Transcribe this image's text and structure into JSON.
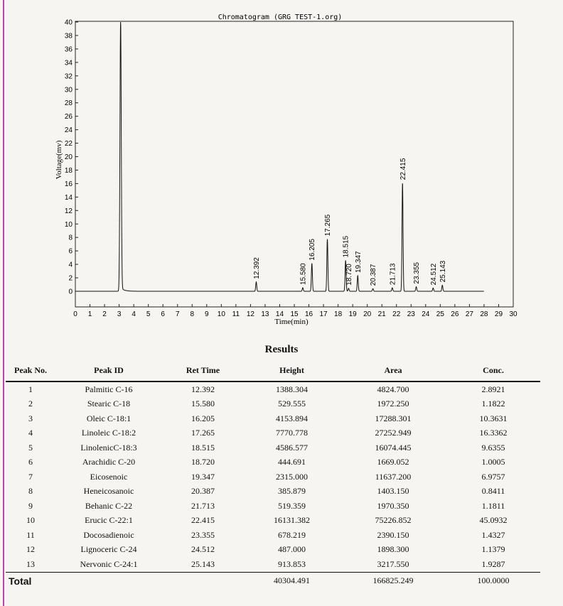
{
  "chart_data": {
    "type": "line",
    "title": "Chromatogram (GRG TEST-1.org)",
    "xlabel": "Time(min)",
    "ylabel": "Voltage(mv)",
    "xlim": [
      0,
      30
    ],
    "ylim": [
      -2,
      40
    ],
    "x_ticks": [
      0,
      1,
      2,
      3,
      4,
      5,
      6,
      7,
      8,
      9,
      10,
      11,
      12,
      13,
      14,
      15,
      16,
      17,
      18,
      19,
      20,
      21,
      22,
      23,
      24,
      25,
      26,
      27,
      28,
      29,
      30
    ],
    "y_ticks": [
      0,
      2,
      4,
      6,
      8,
      10,
      12,
      14,
      16,
      18,
      20,
      22,
      24,
      26,
      28,
      30,
      32,
      34,
      36,
      38,
      40
    ],
    "grid": false,
    "legend": "none",
    "solvent_peak": {
      "time": 3.1,
      "height": 40
    },
    "series": [
      {
        "peaks": [
          {
            "time": 12.392,
            "label": "12.392",
            "height": 1.39
          },
          {
            "time": 15.58,
            "label": "15.580",
            "height": 0.53
          },
          {
            "time": 16.205,
            "label": "16.205",
            "height": 4.15
          },
          {
            "time": 17.265,
            "label": "17.265",
            "height": 7.77
          },
          {
            "time": 18.515,
            "label": "18.515",
            "height": 4.59
          },
          {
            "time": 18.72,
            "label": "18.720",
            "height": 0.44
          },
          {
            "time": 19.347,
            "label": "19.347",
            "height": 2.32
          },
          {
            "time": 20.387,
            "label": "20.387",
            "height": 0.39
          },
          {
            "time": 21.713,
            "label": "21.713",
            "height": 0.52
          },
          {
            "time": 22.415,
            "label": "22.415",
            "height": 16.13
          },
          {
            "time": 23.355,
            "label": "23.355",
            "height": 0.68
          },
          {
            "time": 24.512,
            "label": "24.512",
            "height": 0.49
          },
          {
            "time": 25.143,
            "label": "25.143",
            "height": 0.91
          }
        ]
      }
    ]
  },
  "results": {
    "title": "Results",
    "headers": [
      "Peak No.",
      "Peak ID",
      "Ret Time",
      "Height",
      "Area",
      "Conc."
    ],
    "rows": [
      [
        "1",
        "Palmitic C-16",
        "12.392",
        "1388.304",
        "4824.700",
        "2.8921"
      ],
      [
        "2",
        "Stearic C-18",
        "15.580",
        "529.555",
        "1972.250",
        "1.1822"
      ],
      [
        "3",
        "Oleic C-18:1",
        "16.205",
        "4153.894",
        "17288.301",
        "10.3631"
      ],
      [
        "4",
        "Linoleic C-18:2",
        "17.265",
        "7770.778",
        "27252.949",
        "16.3362"
      ],
      [
        "5",
        "LinolenicC-18:3",
        "18.515",
        "4586.577",
        "16074.445",
        "9.6355"
      ],
      [
        "6",
        "Arachidic C-20",
        "18.720",
        "444.691",
        "1669.052",
        "1.0005"
      ],
      [
        "7",
        "Eicosenoic",
        "19.347",
        "2315.000",
        "11637.200",
        "6.9757"
      ],
      [
        "8",
        "Heneicosanoic",
        "20.387",
        "385.879",
        "1403.150",
        "0.8411"
      ],
      [
        "9",
        "Behanic C-22",
        "21.713",
        "519.359",
        "1970.350",
        "1.1811"
      ],
      [
        "10",
        "Erucic C-22:1",
        "22.415",
        "16131.382",
        "75226.852",
        "45.0932"
      ],
      [
        "11",
        "Docosadienoic",
        "23.355",
        "678.219",
        "2390.150",
        "1.4327"
      ],
      [
        "12",
        "Lignoceric C-24",
        "24.512",
        "487.000",
        "1898.300",
        "1.1379"
      ],
      [
        "13",
        "Nervonic C-24:1",
        "25.143",
        "913.853",
        "3217.550",
        "1.9287"
      ]
    ],
    "total": {
      "label": "Total",
      "height": "40304.491",
      "area": "166825.249",
      "conc": "100.0000"
    }
  }
}
